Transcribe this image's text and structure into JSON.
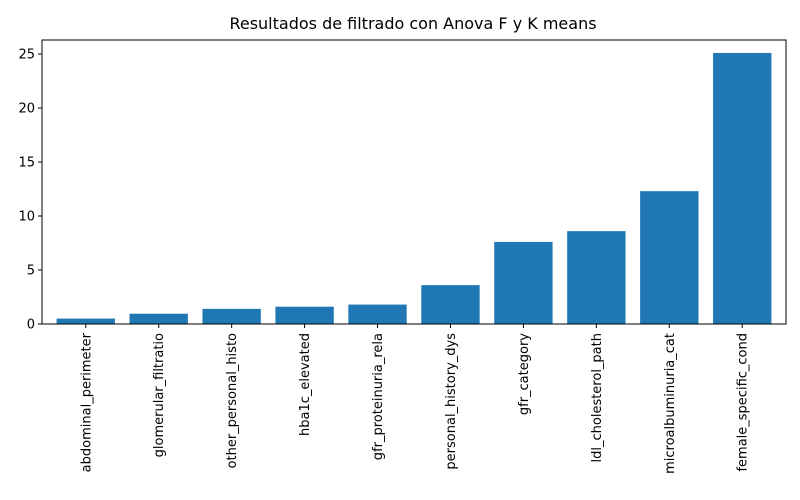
{
  "chart_data": {
    "type": "bar",
    "title": "Resultados de filtrado con Anova F y K means",
    "xlabel": "",
    "ylabel": "",
    "categories": [
      "abdominal_perimeter",
      "glomerular_filtratio",
      "other_personal_histo",
      "hba1c_elevated",
      "gfr_proteinuria_rela",
      "personal_history_dys",
      "gfr_category",
      "ldl_cholesterol_path",
      "microalbuminuria_cat",
      "female_specific_cond"
    ],
    "values": [
      0.5,
      0.95,
      1.4,
      1.6,
      1.8,
      3.6,
      7.6,
      8.6,
      12.3,
      25.1
    ],
    "ylim": [
      0,
      26.3
    ],
    "yticks": [
      0,
      5,
      10,
      15,
      20,
      25
    ],
    "grid": false,
    "bar_color": "#1f77b4"
  }
}
